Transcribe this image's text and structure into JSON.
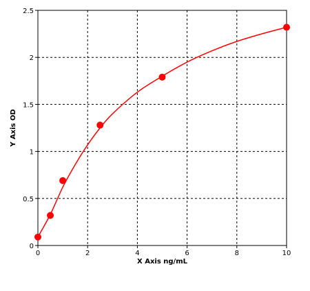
{
  "chart_data": {
    "type": "scatter",
    "title": "",
    "xlabel": "X Axis ng/mL",
    "ylabel": "Y Axis OD",
    "xlim": [
      0,
      10
    ],
    "ylim": [
      0,
      2.5
    ],
    "x_ticks": [
      0,
      2,
      4,
      6,
      8,
      10
    ],
    "y_ticks": [
      0,
      0.5,
      1,
      1.5,
      2,
      2.5
    ],
    "x_tick_labels": [
      "0",
      "2",
      "4",
      "6",
      "8",
      "10"
    ],
    "y_tick_labels": [
      "0",
      "0.5",
      "1",
      "1.5",
      "2",
      "2.5"
    ],
    "grid": true,
    "grid_style": "dashed",
    "points": [
      {
        "x": 0,
        "y": 0.09
      },
      {
        "x": 0.5,
        "y": 0.32
      },
      {
        "x": 1,
        "y": 0.69
      },
      {
        "x": 2.5,
        "y": 1.28
      },
      {
        "x": 5,
        "y": 1.79
      },
      {
        "x": 10,
        "y": 2.32
      }
    ],
    "fit_curve": [
      {
        "x": 0,
        "y": 0.09
      },
      {
        "x": 0.5,
        "y": 0.33
      },
      {
        "x": 1,
        "y": 0.62
      },
      {
        "x": 1.5,
        "y": 0.86
      },
      {
        "x": 2,
        "y": 1.07
      },
      {
        "x": 2.5,
        "y": 1.25
      },
      {
        "x": 3,
        "y": 1.4
      },
      {
        "x": 4,
        "y": 1.63
      },
      {
        "x": 5,
        "y": 1.8
      },
      {
        "x": 6,
        "y": 1.95
      },
      {
        "x": 7,
        "y": 2.07
      },
      {
        "x": 8,
        "y": 2.17
      },
      {
        "x": 9,
        "y": 2.25
      },
      {
        "x": 10,
        "y": 2.32
      }
    ],
    "point_color": "#ff0000",
    "line_color": "#ff0000",
    "grid_color": "#000000"
  }
}
